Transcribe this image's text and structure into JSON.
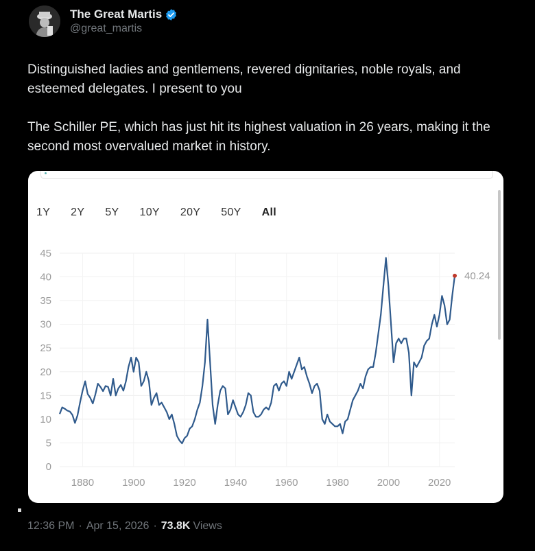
{
  "author": {
    "display_name": "The Great Martis",
    "handle": "@great_martis"
  },
  "post": {
    "paragraphs": [
      "Distinguished ladies and gentlemens, revered dignitaries, noble royals, and esteemed delegates. I present to you",
      "The Schiller PE, which has just hit its highest valuation in 26 years, making it the second most overvalued market in history."
    ]
  },
  "range_buttons": [
    "1Y",
    "2Y",
    "5Y",
    "10Y",
    "20Y",
    "50Y",
    "All"
  ],
  "active_range": "All",
  "footer": {
    "time": "12:36 PM",
    "date": "Apr 15, 2026",
    "views_count": "73.8K",
    "views_label": "Views"
  },
  "colors": {
    "line": "#2f5a8c",
    "last_point": "#c0392b",
    "verified": "#1d9bf0"
  },
  "chart_data": {
    "type": "line",
    "ylim": [
      0,
      45
    ],
    "xlim": [
      1871,
      2026
    ],
    "y_ticks": [
      "0",
      "5",
      "10",
      "15",
      "20",
      "25",
      "30",
      "35",
      "40",
      "45"
    ],
    "x_ticks": [
      "1880",
      "1900",
      "1920",
      "1940",
      "1960",
      "1980",
      "2000",
      "2020"
    ],
    "last_value_label": "40.24",
    "series": [
      {
        "x": [
          1871,
          1872,
          1873,
          1874,
          1875,
          1876,
          1877,
          1878,
          1879,
          1880,
          1881,
          1882,
          1883,
          1884,
          1885,
          1886,
          1887,
          1888,
          1889,
          1890,
          1891,
          1892,
          1893,
          1894,
          1895,
          1896,
          1897,
          1898,
          1899,
          1900,
          1901,
          1902,
          1903,
          1904,
          1905,
          1906,
          1907,
          1908,
          1909,
          1910,
          1911,
          1912,
          1913,
          1914,
          1915,
          1916,
          1917,
          1918,
          1919,
          1920,
          1921,
          1922,
          1923,
          1924,
          1925,
          1926,
          1927,
          1928,
          1929,
          1930,
          1931,
          1932,
          1933,
          1934,
          1935,
          1936,
          1937,
          1938,
          1939,
          1940,
          1941,
          1942,
          1943,
          1944,
          1945,
          1946,
          1947,
          1948,
          1949,
          1950,
          1951,
          1952,
          1953,
          1954,
          1955,
          1956,
          1957,
          1958,
          1959,
          1960,
          1961,
          1962,
          1963,
          1964,
          1965,
          1966,
          1967,
          1968,
          1969,
          1970,
          1971,
          1972,
          1973,
          1974,
          1975,
          1976,
          1977,
          1978,
          1979,
          1980,
          1981,
          1982,
          1983,
          1984,
          1985,
          1986,
          1987,
          1988,
          1989,
          1990,
          1991,
          1992,
          1993,
          1994,
          1995,
          1996,
          1997,
          1998,
          1999,
          2000,
          2001,
          2002,
          2003,
          2004,
          2005,
          2006,
          2007,
          2008,
          2009,
          2010,
          2011,
          2012,
          2013,
          2014,
          2015,
          2016,
          2017,
          2018,
          2019,
          2020,
          2021,
          2022,
          2023,
          2024,
          2025,
          2026
        ],
        "values": [
          11.1,
          12.5,
          12.2,
          11.8,
          11.6,
          10.9,
          9.2,
          10.8,
          13.5,
          16.0,
          18.0,
          15.3,
          14.5,
          13.3,
          15.2,
          17.5,
          16.8,
          15.9,
          17.0,
          16.8,
          15.0,
          18.5,
          15.0,
          16.5,
          17.2,
          16.0,
          18.0,
          21.0,
          23.0,
          20.0,
          23.0,
          22.0,
          17.0,
          18.0,
          20.0,
          18.0,
          13.0,
          14.5,
          15.5,
          13.0,
          13.5,
          12.5,
          11.5,
          10.0,
          11.0,
          9.0,
          6.5,
          5.5,
          4.9,
          6.0,
          6.5,
          8.0,
          8.5,
          10.0,
          12.0,
          13.5,
          17.0,
          22.0,
          31.0,
          22.0,
          13.0,
          9.0,
          13.0,
          16.0,
          17.0,
          16.5,
          11.0,
          12.0,
          14.0,
          12.5,
          11.0,
          10.5,
          11.5,
          13.0,
          15.5,
          15.0,
          11.5,
          10.5,
          10.5,
          11.0,
          12.0,
          12.5,
          12.0,
          13.5,
          17.0,
          17.5,
          16.0,
          17.5,
          18.0,
          17.0,
          20.0,
          18.5,
          20.0,
          21.5,
          23.0,
          20.5,
          21.0,
          19.0,
          17.5,
          15.5,
          17.0,
          17.5,
          16.0,
          10.0,
          9.0,
          11.0,
          9.5,
          9.0,
          8.5,
          8.5,
          9.0,
          7.0,
          9.5,
          10.0,
          12.0,
          14.0,
          15.0,
          16.0,
          17.5,
          16.5,
          19.0,
          20.5,
          21.0,
          21.0,
          24.0,
          28.0,
          32.0,
          38.0,
          44.0,
          38.0,
          30.0,
          22.0,
          26.0,
          27.0,
          26.0,
          27.0,
          27.0,
          24.0,
          15.0,
          22.0,
          21.0,
          22.0,
          23.0,
          25.5,
          26.5,
          27.0,
          30.0,
          32.0,
          29.5,
          32.0,
          36.0,
          34.0,
          30.0,
          31.0,
          36.0,
          40.24
        ]
      }
    ]
  }
}
